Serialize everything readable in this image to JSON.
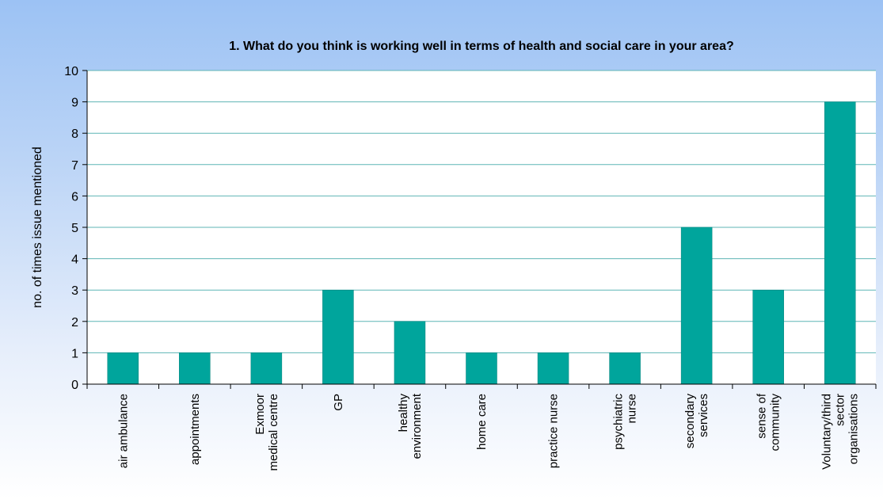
{
  "chart_data": {
    "type": "bar",
    "title": "1. What do you think is working well in terms of health and social care in your area?",
    "xlabel": "",
    "ylabel": "no. of times issue mentioned",
    "ylim": [
      0,
      10
    ],
    "yticks": [
      0,
      1,
      2,
      3,
      4,
      5,
      6,
      7,
      8,
      9,
      10
    ],
    "grid": true,
    "categories": [
      [
        "air ambulance"
      ],
      [
        "appointments"
      ],
      [
        "Exmoor",
        "medical centre"
      ],
      [
        "GP"
      ],
      [
        "healthy",
        "environment"
      ],
      [
        "home care"
      ],
      [
        "practice nurse"
      ],
      [
        "psychiatric",
        "nurse"
      ],
      [
        "secondary",
        "services"
      ],
      [
        "sense of",
        "community"
      ],
      [
        "Voluntary/third",
        "sector",
        "organisations"
      ]
    ],
    "values": [
      1,
      1,
      1,
      3,
      2,
      1,
      1,
      1,
      5,
      3,
      9
    ],
    "colors": {
      "bar": "#00a59c",
      "bar_edge": "#00807a",
      "grid": "#5fb5b5",
      "plot_background": "#ffffff",
      "axis": "#000000"
    }
  }
}
